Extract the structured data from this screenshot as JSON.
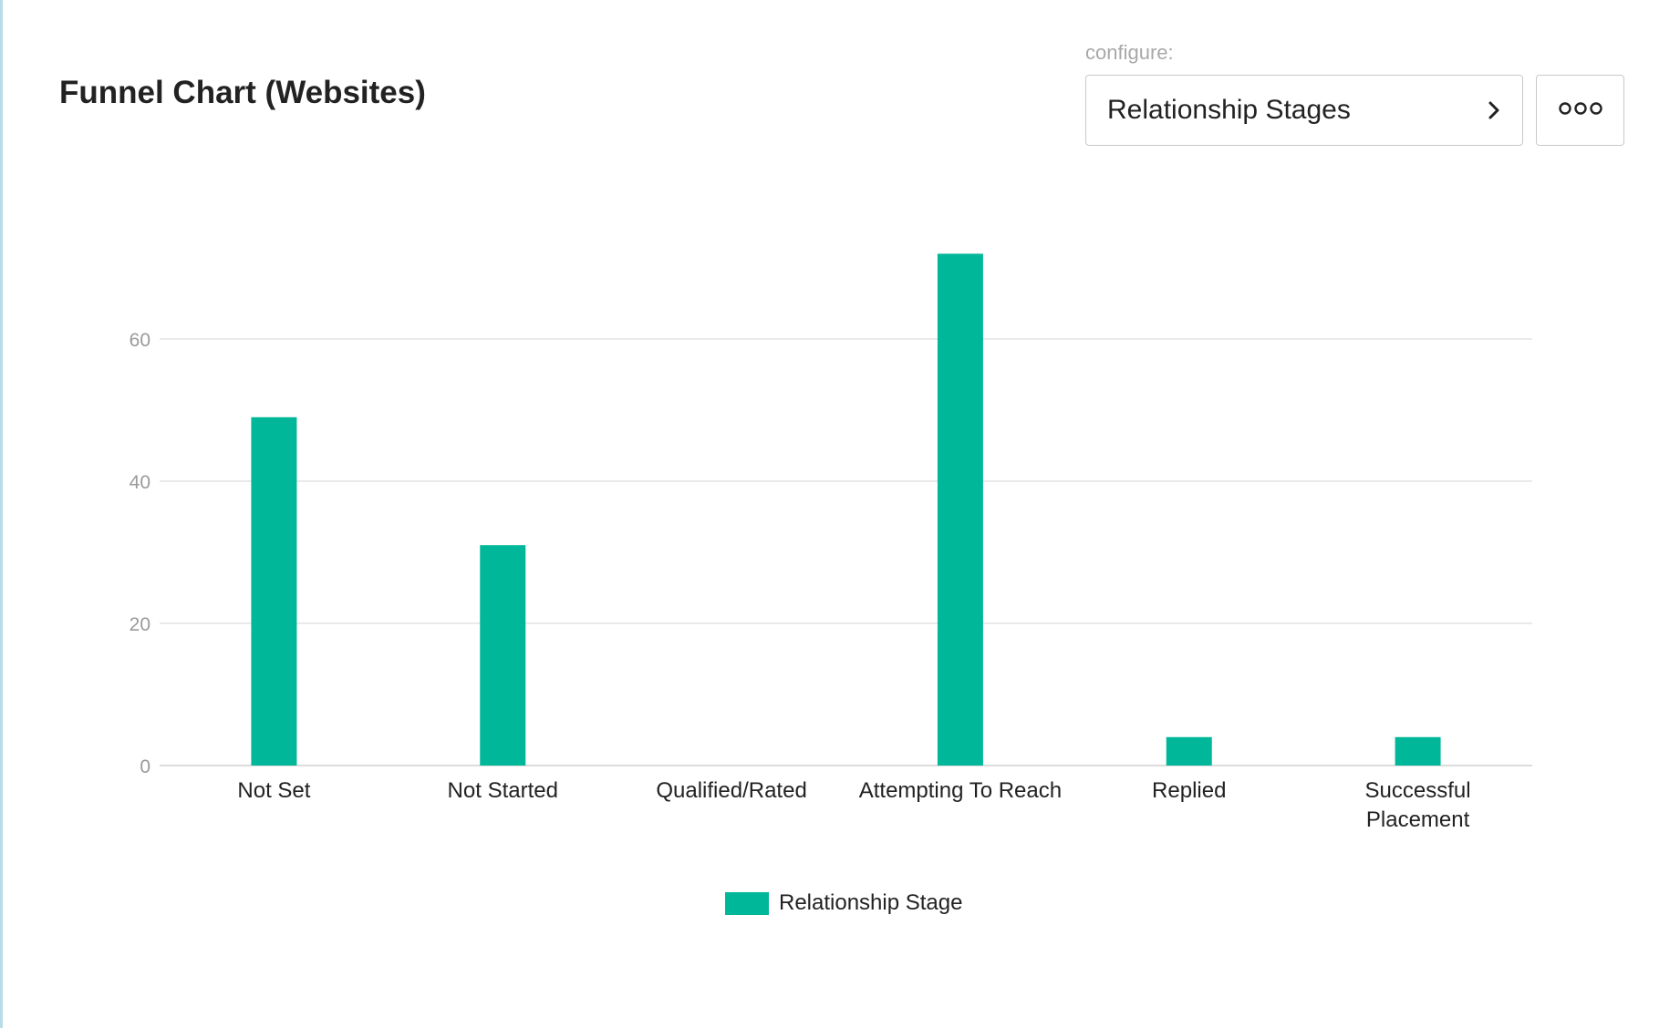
{
  "header": {
    "title": "Funnel Chart (Websites)",
    "configure_label": "configure:",
    "select_value": "Relationship Stages",
    "select_icon": "chevron-right-icon",
    "more_icon": "more-horizontal-icon"
  },
  "colors": {
    "bar": "#00b899",
    "grid": "#e3e3e3",
    "tick": "#9a9a9a"
  },
  "chart_data": {
    "type": "bar",
    "title": "",
    "xlabel": "",
    "ylabel": "",
    "categories": [
      "Not Set",
      "Not Started",
      "Qualified/Rated",
      "Attempting To Reach",
      "Replied",
      "Successful Placement"
    ],
    "series": [
      {
        "name": "Relationship Stage",
        "values": [
          49,
          31,
          0,
          72,
          4,
          4
        ]
      }
    ],
    "ylim": [
      0,
      80
    ],
    "yticks": [
      0,
      20,
      40,
      60
    ],
    "grid": true,
    "legend": "bottom-center"
  }
}
